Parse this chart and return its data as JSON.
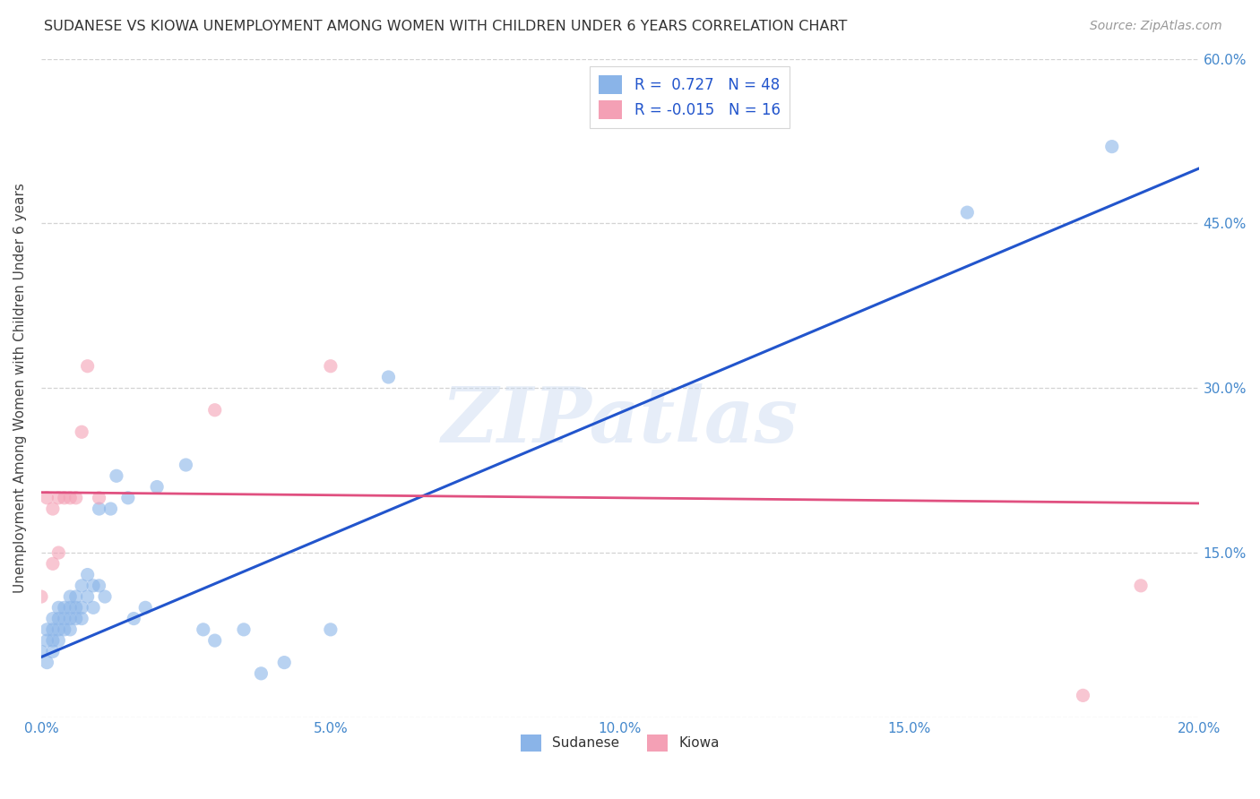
{
  "title": "SUDANESE VS KIOWA UNEMPLOYMENT AMONG WOMEN WITH CHILDREN UNDER 6 YEARS CORRELATION CHART",
  "source": "Source: ZipAtlas.com",
  "ylabel": "Unemployment Among Women with Children Under 6 years",
  "xlim": [
    0.0,
    0.2
  ],
  "ylim": [
    0.0,
    0.6
  ],
  "x_ticks": [
    0.0,
    0.05,
    0.1,
    0.15,
    0.2
  ],
  "y_ticks": [
    0.0,
    0.15,
    0.3,
    0.45,
    0.6
  ],
  "x_tick_labels": [
    "0.0%",
    "5.0%",
    "10.0%",
    "15.0%",
    "20.0%"
  ],
  "y_tick_labels_right": [
    "",
    "15.0%",
    "30.0%",
    "45.0%",
    "60.0%"
  ],
  "legend_labels": [
    "Sudanese",
    "Kiowa"
  ],
  "sudanese_color": "#8ab4e8",
  "kiowa_color": "#f4a0b5",
  "trend_sudanese_color": "#2255cc",
  "trend_kiowa_color": "#e05080",
  "tick_label_color": "#4488cc",
  "R_sudanese": 0.727,
  "N_sudanese": 48,
  "R_kiowa": -0.015,
  "N_kiowa": 16,
  "background_color": "#ffffff",
  "grid_color": "#c8c8c8",
  "watermark": "ZIPatlas",
  "sudanese_x": [
    0.0,
    0.001,
    0.001,
    0.001,
    0.002,
    0.002,
    0.002,
    0.002,
    0.003,
    0.003,
    0.003,
    0.003,
    0.004,
    0.004,
    0.004,
    0.005,
    0.005,
    0.005,
    0.005,
    0.006,
    0.006,
    0.006,
    0.007,
    0.007,
    0.007,
    0.008,
    0.008,
    0.009,
    0.009,
    0.01,
    0.01,
    0.011,
    0.012,
    0.013,
    0.015,
    0.016,
    0.018,
    0.02,
    0.025,
    0.028,
    0.03,
    0.035,
    0.038,
    0.042,
    0.05,
    0.06,
    0.16,
    0.185
  ],
  "sudanese_y": [
    0.06,
    0.07,
    0.08,
    0.05,
    0.07,
    0.08,
    0.09,
    0.06,
    0.08,
    0.09,
    0.1,
    0.07,
    0.09,
    0.1,
    0.08,
    0.09,
    0.1,
    0.11,
    0.08,
    0.1,
    0.11,
    0.09,
    0.1,
    0.12,
    0.09,
    0.11,
    0.13,
    0.1,
    0.12,
    0.12,
    0.19,
    0.11,
    0.19,
    0.22,
    0.2,
    0.09,
    0.1,
    0.21,
    0.23,
    0.08,
    0.07,
    0.08,
    0.04,
    0.05,
    0.08,
    0.31,
    0.46,
    0.52
  ],
  "kiowa_x": [
    0.0,
    0.001,
    0.002,
    0.002,
    0.003,
    0.003,
    0.004,
    0.005,
    0.006,
    0.007,
    0.008,
    0.01,
    0.03,
    0.05,
    0.18,
    0.19
  ],
  "kiowa_y": [
    0.11,
    0.2,
    0.19,
    0.14,
    0.2,
    0.15,
    0.2,
    0.2,
    0.2,
    0.26,
    0.32,
    0.2,
    0.28,
    0.32,
    0.02,
    0.12
  ],
  "trend_sudanese_x0": 0.0,
  "trend_sudanese_y0": 0.055,
  "trend_sudanese_x1": 0.2,
  "trend_sudanese_y1": 0.5,
  "trend_kiowa_x0": 0.0,
  "trend_kiowa_y0": 0.205,
  "trend_kiowa_x1": 0.2,
  "trend_kiowa_y1": 0.195
}
